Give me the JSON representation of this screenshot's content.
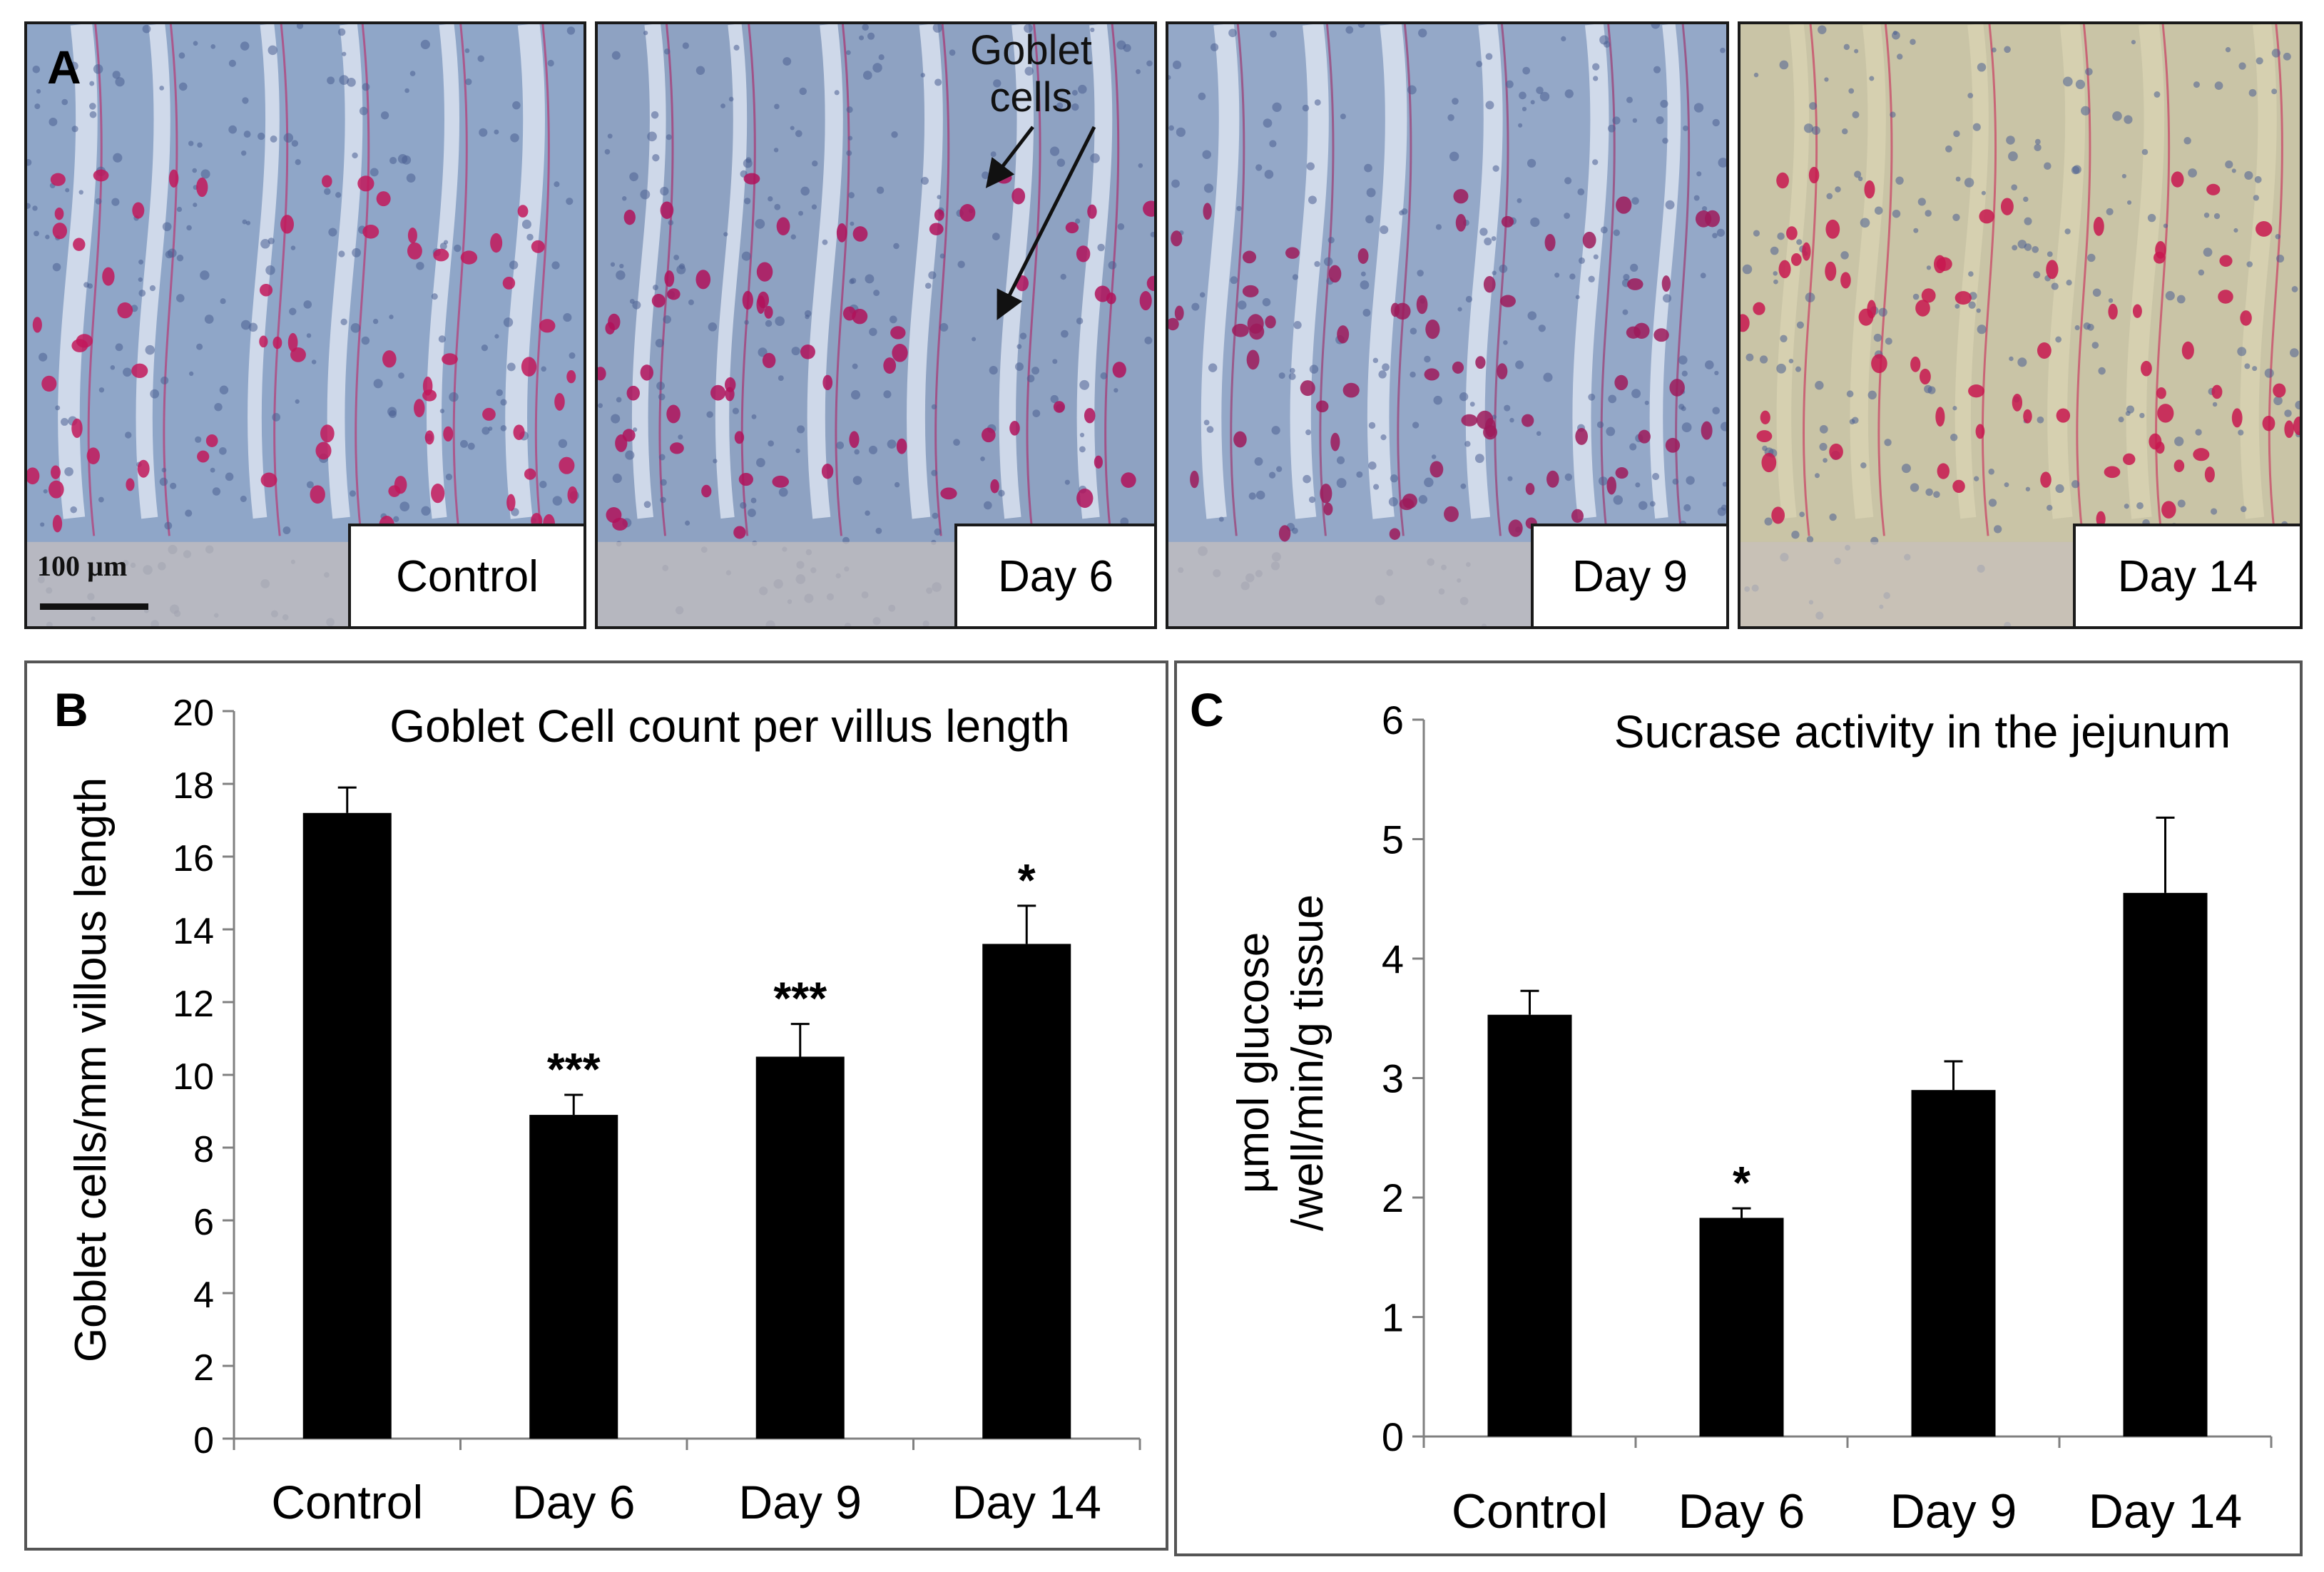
{
  "panel_a": {
    "letter": "A",
    "scale_bar_label": "100 µm",
    "annotation": [
      "Goblet",
      "cells"
    ],
    "images": [
      {
        "label": "Control",
        "tone": "#8fa6c8",
        "stain": "#c2185b"
      },
      {
        "label": "Day 6",
        "tone": "#8ea2c2",
        "stain": "#b0125a"
      },
      {
        "label": "Day 9",
        "tone": "#94a8c8",
        "stain": "#9e1a5a"
      },
      {
        "label": "Day 14",
        "tone": "#c9c4a6",
        "stain": "#c8174f"
      }
    ]
  },
  "chart_data": [
    {
      "panel": "B",
      "type": "bar",
      "title": "Goblet Cell count per villus length",
      "xlabel": "",
      "ylabel": "Goblet cells/mm villous length",
      "categories": [
        "Control",
        "Day 6",
        "Day 9",
        "Day 14"
      ],
      "values": [
        17.2,
        8.9,
        10.5,
        13.6
      ],
      "errors": [
        0.7,
        0.55,
        0.9,
        1.05
      ],
      "significance": [
        "",
        "***",
        "***",
        "*"
      ],
      "ylim": [
        0,
        20
      ],
      "yticks": [
        "0",
        "2",
        "4",
        "6",
        "8",
        "10",
        "12",
        "14",
        "16",
        "18",
        "20"
      ],
      "bar_color": "#000000",
      "grid": false
    },
    {
      "panel": "C",
      "type": "bar",
      "title": "Sucrase activity in the jejunum",
      "xlabel": "",
      "ylabel": [
        "µmol glucose",
        "/well/min/g tissue"
      ],
      "categories": [
        "Control",
        "Day 6",
        "Day 9",
        "Day 14"
      ],
      "values": [
        3.53,
        1.83,
        2.9,
        4.55
      ],
      "errors": [
        0.2,
        0.08,
        0.24,
        0.63
      ],
      "significance": [
        "",
        "*",
        "",
        ""
      ],
      "ylim": [
        0,
        6
      ],
      "yticks": [
        "0",
        "1",
        "2",
        "3",
        "4",
        "5",
        "6"
      ],
      "bar_color": "#000000",
      "grid": false
    }
  ]
}
